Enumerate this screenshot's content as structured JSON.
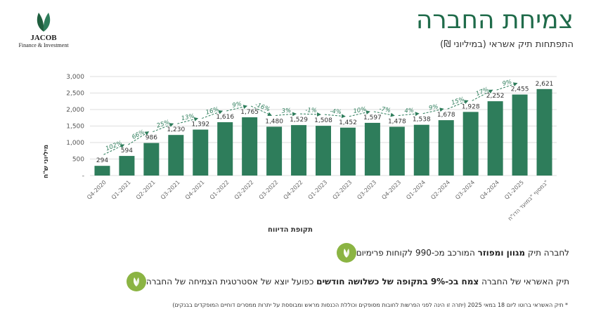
{
  "logo": {
    "name": "JACOB",
    "tagline": "Finance & Investment"
  },
  "title": "צמיחת החברה",
  "subtitle": "התפתחות תיק אשראי (במיליוני ₪)",
  "bullets": [
    {
      "pre": "לחברה תיק ",
      "bold": "מגוון ומפוזר",
      "post": " המורכב מכ-990 לקוחות פרימיום"
    },
    {
      "pre": "תיק האשראי של החברה ",
      "bold": "צמח בכ-9% בתקופה של כשלושה חודשים",
      "post": " כפועל יוצא של אסטרטגית הצמיחה של החברה"
    }
  ],
  "footnote": "* תיק האשראי ברוטו ליום 18 במאי 2025 (יתרה זו הינה לפני הפרשות לחובות מסופקים וכוללת הכנסות מראש ומבוססת על יתרות ממסרים דוחיים המופקדים בבנקים)",
  "colors": {
    "bar": "#2e7d5b",
    "title": "#1f6b4a",
    "bullet": "#8bb443",
    "arrow": "#2e7d5b"
  },
  "chart_data": {
    "type": "bar",
    "categories": [
      "Q4-2020",
      "Q1-2021",
      "Q2-2021",
      "Q3-2021",
      "Q4-2021",
      "Q1-2022",
      "Q2-2022",
      "Q3-2022",
      "Q4-2022",
      "Q1-2023",
      "Q2-2023",
      "Q3-2023",
      "Q4-2023",
      "Q1-2024",
      "Q2-2024",
      "Q3-2024",
      "Q4-2024",
      "Q1-2025",
      "במסוף \"במועד הדו\"ח\""
    ],
    "values": [
      294,
      594,
      986,
      1230,
      1392,
      1616,
      1765,
      1480,
      1529,
      1508,
      1452,
      1597,
      1478,
      1538,
      1678,
      1928,
      2252,
      2455,
      2621
    ],
    "value_labels": [
      "294",
      "594",
      "986",
      "1,230",
      "1,392",
      "1,616",
      "1,765",
      "1,480",
      "1,529",
      "1,508",
      "1,452",
      "1,597",
      "1,478",
      "1,538",
      "1,678",
      "1,928",
      "2,252",
      "2,455",
      "2,621"
    ],
    "growth_labels": [
      "102%",
      "66%",
      "25%",
      "13%",
      "16%",
      "9%",
      "-16%",
      "3%",
      "-1%",
      "-4%",
      "10%",
      "-7%",
      "4%",
      "9%",
      "15%",
      "17%",
      "9%"
    ],
    "yticks": [
      "-",
      "500",
      "1,000",
      "1,500",
      "2,000",
      "2,500",
      "3,000"
    ],
    "ylim": [
      0,
      3000
    ],
    "ylabel": "מיליוני ש\"ח",
    "xlabel": "תקופת הדיווח",
    "grid": true,
    "legend": "none"
  }
}
